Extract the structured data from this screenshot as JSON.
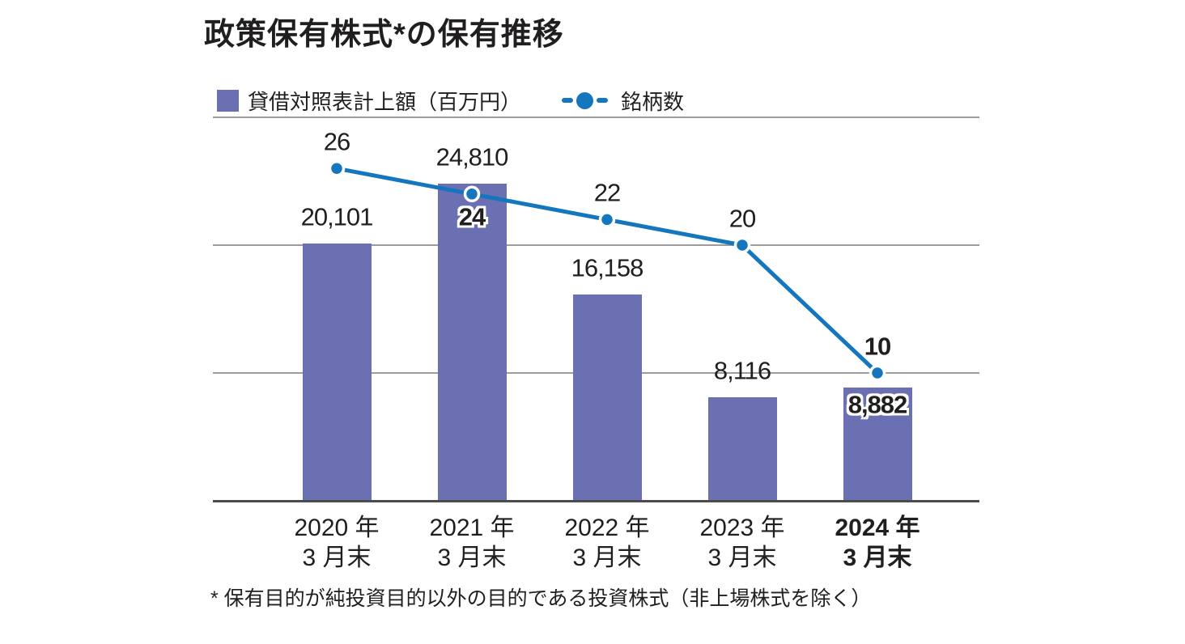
{
  "footnote": "* 保有目的が純投資目的以外の目的である投資株式（非上場株式を除く）",
  "colors": {
    "bar": "#6a70b2",
    "line": "#1477be",
    "grid": "#9c9c9c",
    "axis": "#4c4c4c",
    "text": "#201e1e",
    "background": "#ffffff",
    "marker_ring": "#ffffff"
  },
  "chart_data": {
    "type": "bar+line",
    "title": "政策保有株式*の保有推移",
    "legend_position": "top-left",
    "grid": "horizontal",
    "categories": [
      {
        "line1": "2020 年",
        "line2": "3 月末",
        "bold": false
      },
      {
        "line1": "2021 年",
        "line2": "3 月末",
        "bold": false
      },
      {
        "line1": "2022 年",
        "line2": "3 月末",
        "bold": false
      },
      {
        "line1": "2023 年",
        "line2": "3 月末",
        "bold": false
      },
      {
        "line1": "2024 年",
        "line2": "3 月末",
        "bold": true
      }
    ],
    "bar_series": {
      "name": "貸借対照表計上額（百万円）",
      "values": [
        20101,
        24810,
        16158,
        8116,
        8882
      ],
      "labels": [
        "20,101",
        "24,810",
        "16,158",
        "8,116",
        "8,882"
      ],
      "label_position": [
        "above",
        "above",
        "above",
        "above",
        "inside"
      ],
      "label_bold": [
        false,
        false,
        false,
        false,
        true
      ],
      "axis_max": 30000,
      "gridline_step": 10000
    },
    "line_series": {
      "name": "銘柄数",
      "values": [
        26,
        24,
        22,
        20,
        10
      ],
      "labels": [
        "26",
        "24",
        "22",
        "20",
        "10"
      ],
      "label_position": [
        "above",
        "below",
        "above",
        "above",
        "above"
      ],
      "label_bold": [
        false,
        false,
        false,
        false,
        true
      ],
      "axis_max": 30
    }
  }
}
